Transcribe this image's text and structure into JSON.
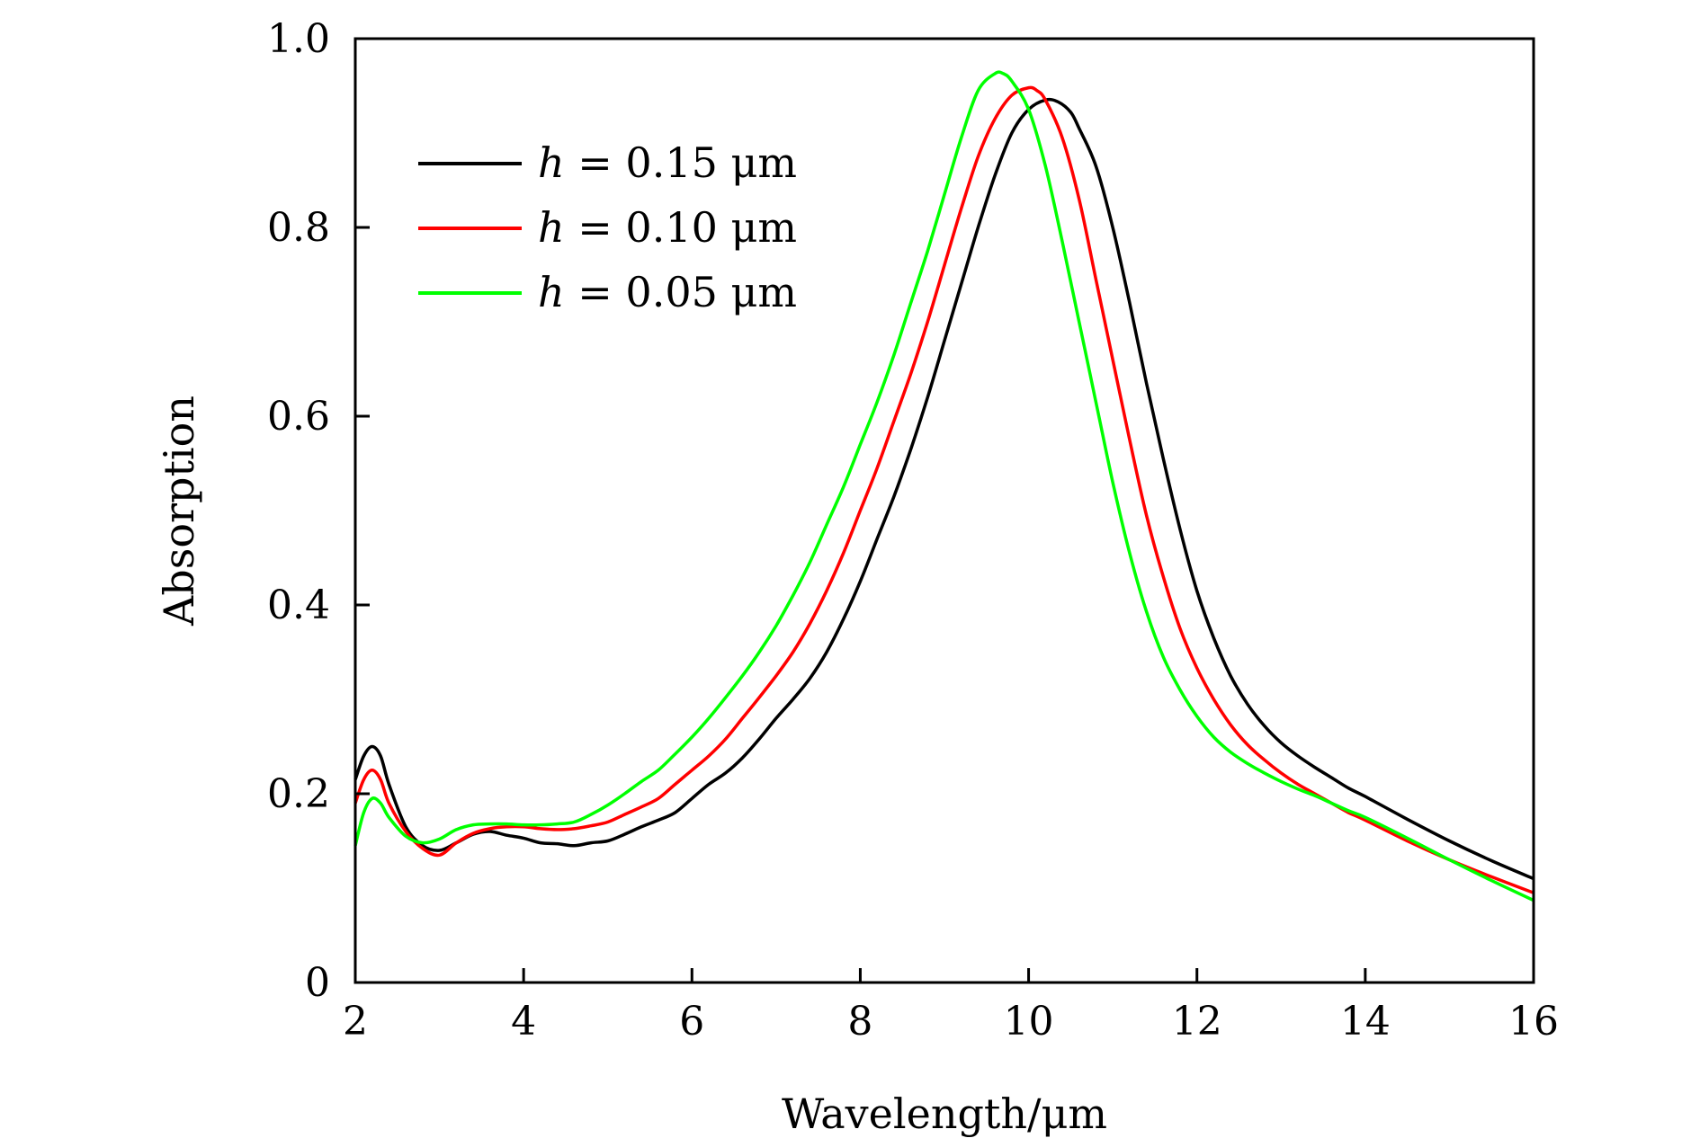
{
  "chart_data": {
    "type": "line",
    "title": "",
    "xlabel": "Wavelength/μm",
    "ylabel": "Absorption",
    "xlim": [
      2,
      16
    ],
    "ylim": [
      0,
      1.0
    ],
    "xticks": [
      2,
      4,
      6,
      8,
      10,
      12,
      14,
      16
    ],
    "xtick_labels": [
      "2",
      "4",
      "6",
      "8",
      "10",
      "12",
      "14",
      "16"
    ],
    "yticks": [
      0,
      0.2,
      0.4,
      0.6,
      0.8,
      1.0
    ],
    "ytick_labels": [
      "0",
      "0.2",
      "0.4",
      "0.6",
      "0.8",
      "1.0"
    ],
    "grid": false,
    "legend_position": "top-left",
    "series": [
      {
        "name": "h = 0.15 μm",
        "legend_var": "h",
        "legend_rest": " = 0.15 μm",
        "color": "#000000",
        "x": [
          2.0,
          2.1,
          2.2,
          2.3,
          2.4,
          2.6,
          2.8,
          3.0,
          3.2,
          3.4,
          3.6,
          3.8,
          4.0,
          4.2,
          4.4,
          4.6,
          4.8,
          5.0,
          5.2,
          5.4,
          5.6,
          5.8,
          6.0,
          6.2,
          6.4,
          6.6,
          6.8,
          7.0,
          7.2,
          7.4,
          7.6,
          7.8,
          8.0,
          8.2,
          8.4,
          8.6,
          8.8,
          9.0,
          9.2,
          9.4,
          9.6,
          9.8,
          10.0,
          10.2,
          10.35,
          10.5,
          10.6,
          10.8,
          11.0,
          11.2,
          11.4,
          11.6,
          11.8,
          12.0,
          12.2,
          12.4,
          12.6,
          12.8,
          13.0,
          13.2,
          13.4,
          13.6,
          13.8,
          14.0,
          14.5,
          15.0,
          15.5,
          16.0
        ],
        "y": [
          0.215,
          0.24,
          0.25,
          0.24,
          0.21,
          0.165,
          0.145,
          0.14,
          0.148,
          0.157,
          0.16,
          0.156,
          0.153,
          0.148,
          0.147,
          0.145,
          0.148,
          0.15,
          0.157,
          0.165,
          0.172,
          0.18,
          0.195,
          0.21,
          0.222,
          0.238,
          0.258,
          0.28,
          0.3,
          0.322,
          0.35,
          0.385,
          0.425,
          0.47,
          0.515,
          0.565,
          0.62,
          0.68,
          0.74,
          0.8,
          0.855,
          0.9,
          0.925,
          0.935,
          0.933,
          0.922,
          0.905,
          0.865,
          0.8,
          0.72,
          0.635,
          0.555,
          0.48,
          0.415,
          0.365,
          0.325,
          0.295,
          0.272,
          0.254,
          0.24,
          0.228,
          0.217,
          0.206,
          0.197,
          0.173,
          0.15,
          0.129,
          0.11
        ]
      },
      {
        "name": "h = 0.10 μm",
        "legend_var": "h",
        "legend_rest": " = 0.10 μm",
        "color": "#ff0000",
        "x": [
          2.0,
          2.1,
          2.2,
          2.3,
          2.4,
          2.6,
          2.8,
          3.0,
          3.2,
          3.4,
          3.6,
          3.8,
          4.0,
          4.2,
          4.4,
          4.6,
          4.8,
          5.0,
          5.2,
          5.4,
          5.6,
          5.8,
          6.0,
          6.2,
          6.4,
          6.6,
          6.8,
          7.0,
          7.2,
          7.4,
          7.6,
          7.8,
          8.0,
          8.2,
          8.4,
          8.6,
          8.8,
          9.0,
          9.2,
          9.4,
          9.6,
          9.8,
          10.0,
          10.1,
          10.2,
          10.4,
          10.6,
          10.8,
          11.0,
          11.2,
          11.4,
          11.6,
          11.8,
          12.0,
          12.2,
          12.4,
          12.6,
          12.8,
          13.0,
          13.2,
          13.4,
          13.6,
          13.8,
          14.0,
          14.5,
          15.0,
          15.5,
          16.0
        ],
        "y": [
          0.19,
          0.215,
          0.225,
          0.215,
          0.19,
          0.16,
          0.142,
          0.135,
          0.148,
          0.158,
          0.163,
          0.165,
          0.165,
          0.163,
          0.162,
          0.163,
          0.166,
          0.17,
          0.178,
          0.186,
          0.195,
          0.21,
          0.225,
          0.24,
          0.258,
          0.28,
          0.302,
          0.325,
          0.35,
          0.38,
          0.415,
          0.455,
          0.5,
          0.545,
          0.595,
          0.645,
          0.7,
          0.76,
          0.82,
          0.875,
          0.915,
          0.94,
          0.948,
          0.945,
          0.935,
          0.895,
          0.83,
          0.745,
          0.66,
          0.575,
          0.495,
          0.43,
          0.375,
          0.333,
          0.3,
          0.273,
          0.252,
          0.236,
          0.222,
          0.21,
          0.2,
          0.19,
          0.18,
          0.172,
          0.15,
          0.13,
          0.112,
          0.095
        ]
      },
      {
        "name": "h = 0.05 μm",
        "legend_var": "h",
        "legend_rest": " = 0.05 μm",
        "color": "#00ff00",
        "x": [
          2.0,
          2.1,
          2.2,
          2.3,
          2.4,
          2.6,
          2.8,
          3.0,
          3.2,
          3.4,
          3.6,
          3.8,
          4.0,
          4.2,
          4.4,
          4.6,
          4.8,
          5.0,
          5.2,
          5.4,
          5.6,
          5.8,
          6.0,
          6.2,
          6.4,
          6.6,
          6.8,
          7.0,
          7.2,
          7.4,
          7.6,
          7.8,
          8.0,
          8.2,
          8.4,
          8.6,
          8.8,
          9.0,
          9.2,
          9.4,
          9.6,
          9.7,
          9.8,
          10.0,
          10.2,
          10.4,
          10.6,
          10.8,
          11.0,
          11.2,
          11.4,
          11.6,
          11.8,
          12.0,
          12.2,
          12.4,
          12.6,
          12.8,
          13.0,
          13.2,
          13.4,
          13.6,
          13.8,
          14.0,
          14.5,
          15.0,
          15.5,
          16.0
        ],
        "y": [
          0.145,
          0.18,
          0.195,
          0.19,
          0.175,
          0.155,
          0.148,
          0.152,
          0.162,
          0.167,
          0.168,
          0.168,
          0.167,
          0.167,
          0.168,
          0.17,
          0.178,
          0.188,
          0.2,
          0.213,
          0.225,
          0.242,
          0.26,
          0.28,
          0.302,
          0.325,
          0.35,
          0.378,
          0.41,
          0.445,
          0.485,
          0.525,
          0.57,
          0.615,
          0.665,
          0.72,
          0.775,
          0.835,
          0.895,
          0.945,
          0.963,
          0.963,
          0.955,
          0.925,
          0.865,
          0.785,
          0.7,
          0.615,
          0.53,
          0.455,
          0.393,
          0.345,
          0.31,
          0.282,
          0.26,
          0.244,
          0.232,
          0.222,
          0.213,
          0.205,
          0.198,
          0.19,
          0.182,
          0.175,
          0.153,
          0.13,
          0.108,
          0.087
        ]
      }
    ]
  }
}
